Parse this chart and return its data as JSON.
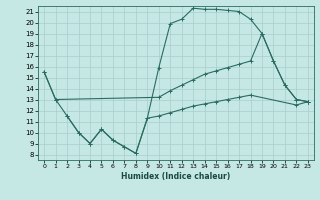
{
  "title": "",
  "xlabel": "Humidex (Indice chaleur)",
  "ylabel": "",
  "bg_color": "#c5e8e5",
  "grid_color": "#a8ceca",
  "line_color": "#2a6b60",
  "xlim": [
    -0.5,
    23.5
  ],
  "ylim": [
    7.5,
    21.5
  ],
  "xticks": [
    0,
    1,
    2,
    3,
    4,
    5,
    6,
    7,
    8,
    9,
    10,
    11,
    12,
    13,
    14,
    15,
    16,
    17,
    18,
    19,
    20,
    21,
    22,
    23
  ],
  "yticks": [
    8,
    9,
    10,
    11,
    12,
    13,
    14,
    15,
    16,
    17,
    18,
    19,
    20,
    21
  ],
  "series1": {
    "x": [
      0,
      1,
      2,
      3,
      4,
      5,
      6,
      7,
      8,
      9,
      10,
      11,
      12,
      13,
      14,
      15,
      16,
      17,
      18,
      19,
      20,
      21,
      22,
      23
    ],
    "y": [
      15.5,
      13.0,
      11.5,
      10.0,
      9.0,
      10.3,
      9.3,
      8.7,
      8.1,
      11.3,
      15.9,
      19.9,
      20.3,
      21.3,
      21.2,
      21.2,
      21.1,
      21.0,
      20.3,
      19.0,
      16.5,
      14.3,
      13.0,
      12.8
    ]
  },
  "series2": {
    "x": [
      0,
      1,
      10,
      11,
      12,
      13,
      14,
      15,
      16,
      17,
      18,
      19,
      20,
      21,
      22,
      23
    ],
    "y": [
      15.5,
      13.0,
      13.2,
      13.8,
      14.3,
      14.8,
      15.3,
      15.6,
      15.9,
      16.2,
      16.5,
      19.0,
      16.5,
      14.3,
      13.0,
      12.8
    ]
  },
  "series3": {
    "x": [
      2,
      3,
      4,
      5,
      6,
      7,
      8,
      9,
      10,
      11,
      12,
      13,
      14,
      15,
      16,
      17,
      18,
      22,
      23
    ],
    "y": [
      11.5,
      10.0,
      9.0,
      10.3,
      9.3,
      8.7,
      8.1,
      11.3,
      11.5,
      11.8,
      12.1,
      12.4,
      12.6,
      12.8,
      13.0,
      13.2,
      13.4,
      12.5,
      12.8
    ]
  }
}
